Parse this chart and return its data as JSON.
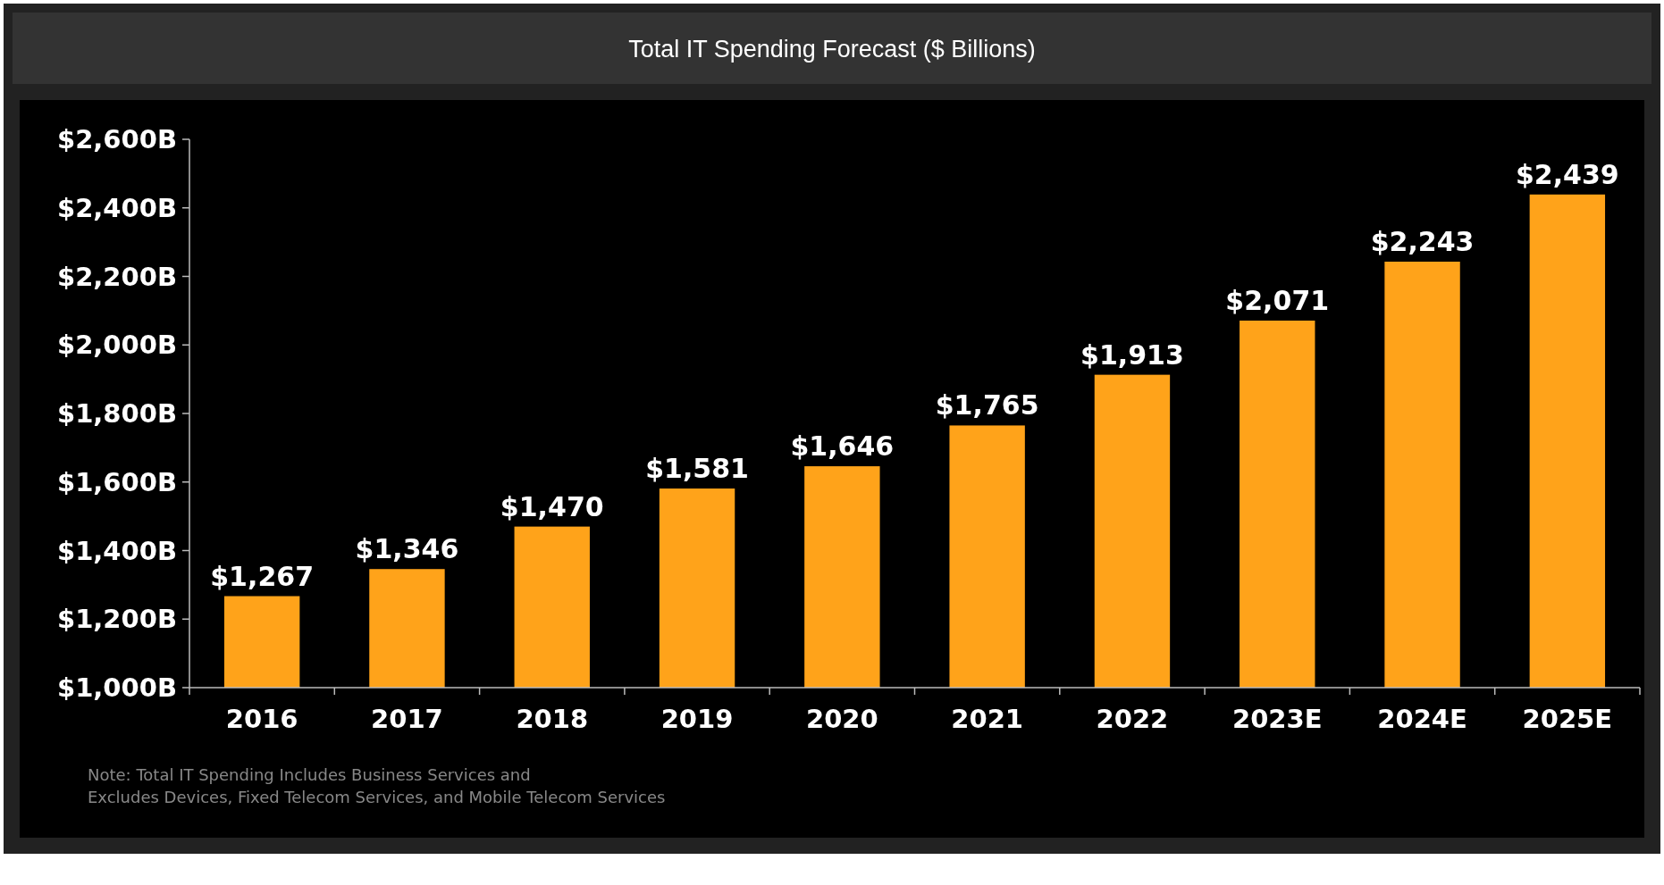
{
  "chart_data": {
    "type": "bar",
    "title": "Total IT Spending Forecast ($ Billions)",
    "categories": [
      "2016",
      "2017",
      "2018",
      "2019",
      "2020",
      "2021",
      "2022",
      "2023E",
      "2024E",
      "2025E"
    ],
    "values": [
      1267,
      1346,
      1470,
      1581,
      1646,
      1765,
      1913,
      2071,
      2243,
      2439
    ],
    "value_labels": [
      "$1,267",
      "$1,346",
      "$1,470",
      "$1,581",
      "$1,646",
      "$1,765",
      "$1,913",
      "$2,071",
      "$2,243",
      "$2,439"
    ],
    "color": "#ffa31a",
    "ylim": [
      1000,
      2600
    ],
    "yticks": [
      {
        "value": 1000,
        "label": "$1,000B"
      },
      {
        "value": 1200,
        "label": "$1,200B"
      },
      {
        "value": 1400,
        "label": "$1,400B"
      },
      {
        "value": 1600,
        "label": "$1,600B"
      },
      {
        "value": 1800,
        "label": "$1,800B"
      },
      {
        "value": 2000,
        "label": "$2,000B"
      },
      {
        "value": 2200,
        "label": "$2,200B"
      },
      {
        "value": 2400,
        "label": "$2,400B"
      },
      {
        "value": 2600,
        "label": "$2,600B"
      }
    ],
    "grid": false,
    "annotations": [
      "Note: Total IT Spending Includes Business Services and",
      "Excludes Devices, Fixed Telecom Services, and Mobile Telecom Services"
    ]
  }
}
